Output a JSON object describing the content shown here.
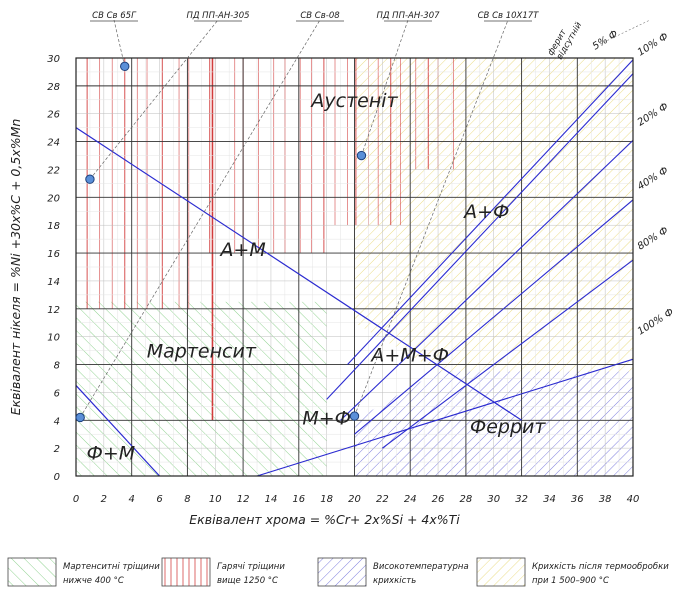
{
  "chart_data": {
    "type": "diagram",
    "x_axis": {
      "label": "Еквівалент хрома = %Cr+ 2x%Si + 4x%Ti",
      "ticks": [
        "0",
        "2",
        "4",
        "6",
        "8",
        "10",
        "12",
        "14",
        "16",
        "18",
        "20",
        "22",
        "24",
        "26",
        "28",
        "30",
        "32",
        "34",
        "36",
        "38",
        "40"
      ],
      "range": [
        0,
        40
      ]
    },
    "y_axis": {
      "label": "Еквівалент нікеля = %Ni +30x%C + 0,5x%Mn",
      "ticks": [
        "0",
        "2",
        "4",
        "6",
        "8",
        "10",
        "12",
        "14",
        "16",
        "18",
        "20",
        "22",
        "24",
        "26",
        "28",
        "30"
      ],
      "range": [
        0,
        30
      ]
    },
    "regions": [
      {
        "label": "Аустеніт",
        "x": 20,
        "y": 26.5
      },
      {
        "label": "А+М",
        "x": 12,
        "y": 15.8
      },
      {
        "label": "Мартенсит",
        "x": 9,
        "y": 8.5
      },
      {
        "label": "А+М+Ф",
        "x": 24,
        "y": 8.2
      },
      {
        "label": "А+Ф",
        "x": 29.5,
        "y": 18.5
      },
      {
        "label": "М+Ф",
        "x": 18,
        "y": 3.7
      },
      {
        "label": "Феррит",
        "x": 31,
        "y": 3.1
      },
      {
        "label": "Ф+М",
        "x": 2.5,
        "y": 1.2
      }
    ],
    "ferrite_lines": [
      {
        "label": "5% Ф",
        "from": [
          19.5,
          8.0
        ],
        "to": [
          42.0,
          32.0
        ]
      },
      {
        "label": "10% Ф",
        "from": [
          18.0,
          5.5
        ],
        "to": [
          42.0,
          31.0
        ]
      },
      {
        "label": "20% Ф",
        "from": [
          19.0,
          4.0
        ],
        "to": [
          42.0,
          26.0
        ]
      },
      {
        "label": "40% Ф",
        "from": [
          20.0,
          3.0
        ],
        "to": [
          42.0,
          21.5
        ]
      },
      {
        "label": "80% Ф",
        "from": [
          22.0,
          2.0
        ],
        "to": [
          42.0,
          17.0
        ]
      },
      {
        "label": "100% Ф",
        "from": [
          13.0,
          0.0
        ],
        "to": [
          42.0,
          9.0
        ]
      }
    ],
    "phase_boundaries": [
      {
        "name": "austenite-martensite",
        "from": [
          0,
          25.0
        ],
        "to": [
          32.0,
          4.0
        ]
      },
      {
        "name": "martensite-ferrite",
        "from": [
          0,
          6.5
        ],
        "to": [
          6.0,
          0.0
        ]
      }
    ],
    "materials": [
      {
        "label": "СВ Св 65Г",
        "x": 3.5,
        "y": 29.4
      },
      {
        "label": "ПД ПП-АН-305",
        "x": 1.0,
        "y": 21.3
      },
      {
        "label": "СВ Св-08",
        "x": 0.3,
        "y": 4.2
      },
      {
        "label": "ПД ПП-АН-307",
        "x": 20.5,
        "y": 23.0
      },
      {
        "label": "СВ Св 10Х17Т",
        "x": 20.0,
        "y": 4.3
      }
    ],
    "callout_labels": [
      "ферит відсутній",
      "5% Ф"
    ],
    "legend": [
      {
        "label_line1": "Мартенситні тріщини",
        "label_line2": "нижче 400 °C",
        "pattern": "green-hatch"
      },
      {
        "label_line1": "Гарячі тріщини",
        "label_line2": "вище 1250 °C",
        "pattern": "red-vertical"
      },
      {
        "label_line1": "Високотемпературна",
        "label_line2": "крихкість",
        "pattern": "blue-hatch"
      },
      {
        "label_line1": "Крихкість після термообробки",
        "label_line2": "при 1 500–900 °C",
        "pattern": "yellow-hatch"
      }
    ],
    "colors": {
      "line": "#2b2bd0",
      "material_marker": "#5a8fd8",
      "hot_crack": "#d23c3c",
      "martensite_crack": "#58b858",
      "ht_brittle": "#3a3ac0",
      "heat_brittle": "#d6c040"
    }
  }
}
